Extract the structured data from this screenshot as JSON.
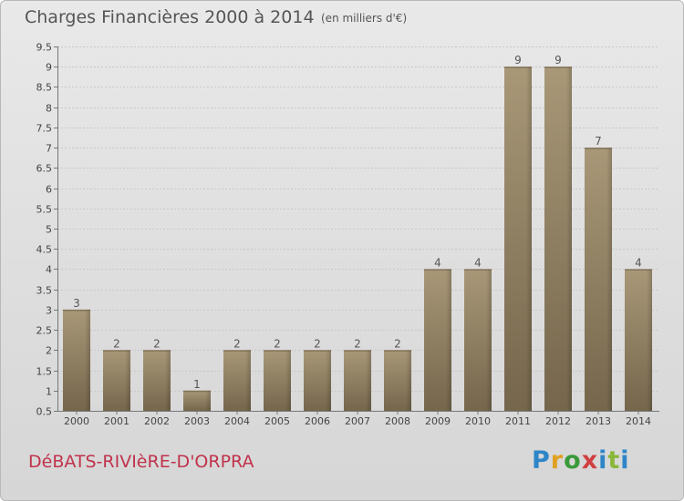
{
  "header": {
    "title": "Charges Financières 2000 à 2014",
    "subtitle": "(en milliers d'€)"
  },
  "footer": {
    "commune": "DéBATS-RIVIèRE-D'ORPRA",
    "logo_text": "Proxiti"
  },
  "colors": {
    "bar": "#8f7e62",
    "bar_label": "#555555",
    "commune_text": "#c0334c"
  },
  "chart_data": {
    "type": "bar",
    "categories": [
      "2000",
      "2001",
      "2002",
      "2003",
      "2004",
      "2005",
      "2006",
      "2007",
      "2008",
      "2009",
      "2010",
      "2011",
      "2012",
      "2013",
      "2014"
    ],
    "values": [
      3,
      2,
      2,
      1,
      2,
      2,
      2,
      2,
      2,
      4,
      4,
      9,
      9,
      7,
      4
    ],
    "data_labels": [
      "3",
      "2",
      "2",
      "1",
      "2",
      "2",
      "2",
      "2",
      "2",
      "4",
      "4",
      "9",
      "9",
      "7",
      "4"
    ],
    "ylim": [
      0.5,
      9.5
    ],
    "yticks": [
      "0.5",
      "1",
      "1.5",
      "2",
      "2.5",
      "3",
      "3.5",
      "4",
      "4.5",
      "5",
      "5.5",
      "6",
      "6.5",
      "7",
      "7.5",
      "8",
      "8.5",
      "9",
      "9.5"
    ],
    "grid": true
  }
}
